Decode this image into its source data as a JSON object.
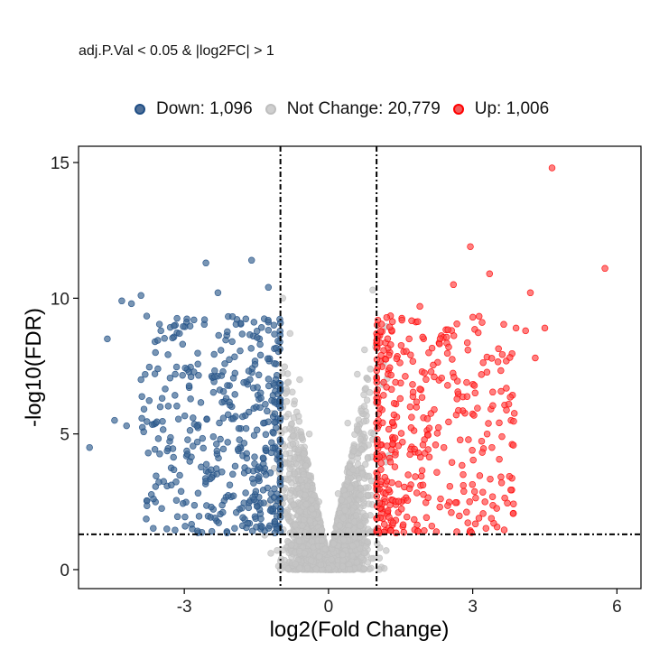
{
  "chart_data": {
    "type": "scatter",
    "subtitle": "adj.P.Val < 0.05 & |log2FC| > 1",
    "xlabel": "log2(Fold Change)",
    "ylabel": "-log10(FDR)",
    "xlim": [
      -5.2,
      6.5
    ],
    "ylim": [
      -0.7,
      15.6
    ],
    "xticks": [
      -3,
      0,
      3,
      6
    ],
    "yticks": [
      0,
      5,
      10,
      15
    ],
    "fc_threshold": 1,
    "fdr_threshold": 1.3,
    "legend_position": "top",
    "series": [
      {
        "name": "Down",
        "count_label": "Down: 1,096",
        "color": "#1f4e85",
        "points": [
          [
            -4.97,
            4.5
          ],
          [
            -4.6,
            8.5
          ],
          [
            -4.45,
            5.5
          ],
          [
            -4.3,
            9.9
          ],
          [
            -4.1,
            9.8
          ],
          [
            -3.9,
            10.1
          ],
          [
            -3.6,
            8.0
          ],
          [
            -3.55,
            7.4
          ],
          [
            -3.9,
            7.0
          ],
          [
            -3.5,
            6.0
          ],
          [
            -3.75,
            4.3
          ],
          [
            -2.55,
            11.3
          ],
          [
            -1.6,
            11.4
          ],
          [
            -1.25,
            10.4
          ],
          [
            -2.3,
            10.2
          ],
          [
            -4.2,
            5.3
          ],
          [
            -3.1,
            8.7
          ],
          [
            -2.8,
            9.2
          ]
        ]
      },
      {
        "name": "Not Change",
        "count_label": "Not Change: 20,779",
        "color": "#bebebe",
        "points": [
          [
            -0.95,
            10.0
          ],
          [
            0.92,
            10.3
          ],
          [
            -0.8,
            8.7
          ],
          [
            0.75,
            8.1
          ],
          [
            -0.6,
            7.0
          ],
          [
            0.6,
            7.2
          ],
          [
            -0.4,
            5.0
          ],
          [
            0.4,
            5.4
          ],
          [
            -0.2,
            2.5
          ],
          [
            0.2,
            2.8
          ],
          [
            0.0,
            0.05
          ],
          [
            -0.5,
            0.6
          ],
          [
            0.5,
            0.5
          ],
          [
            -1.2,
            0.6
          ],
          [
            1.2,
            0.7
          ]
        ]
      },
      {
        "name": "Up",
        "count_label": "Up: 1,006",
        "color": "#ff0000",
        "points": [
          [
            4.65,
            14.8
          ],
          [
            5.75,
            11.1
          ],
          [
            2.95,
            11.9
          ],
          [
            4.2,
            10.2
          ],
          [
            3.35,
            10.9
          ],
          [
            2.6,
            10.5
          ],
          [
            3.9,
            8.9
          ],
          [
            4.1,
            8.8
          ],
          [
            4.5,
            8.9
          ],
          [
            4.3,
            7.8
          ],
          [
            3.75,
            6.1
          ],
          [
            3.6,
            3.2
          ],
          [
            2.8,
            3.5
          ],
          [
            3.3,
            5.0
          ],
          [
            3.4,
            4.5
          ],
          [
            2.4,
            4.5
          ],
          [
            1.9,
            9.7
          ],
          [
            2.2,
            7.1
          ],
          [
            1.7,
            6.0
          ]
        ]
      }
    ]
  }
}
